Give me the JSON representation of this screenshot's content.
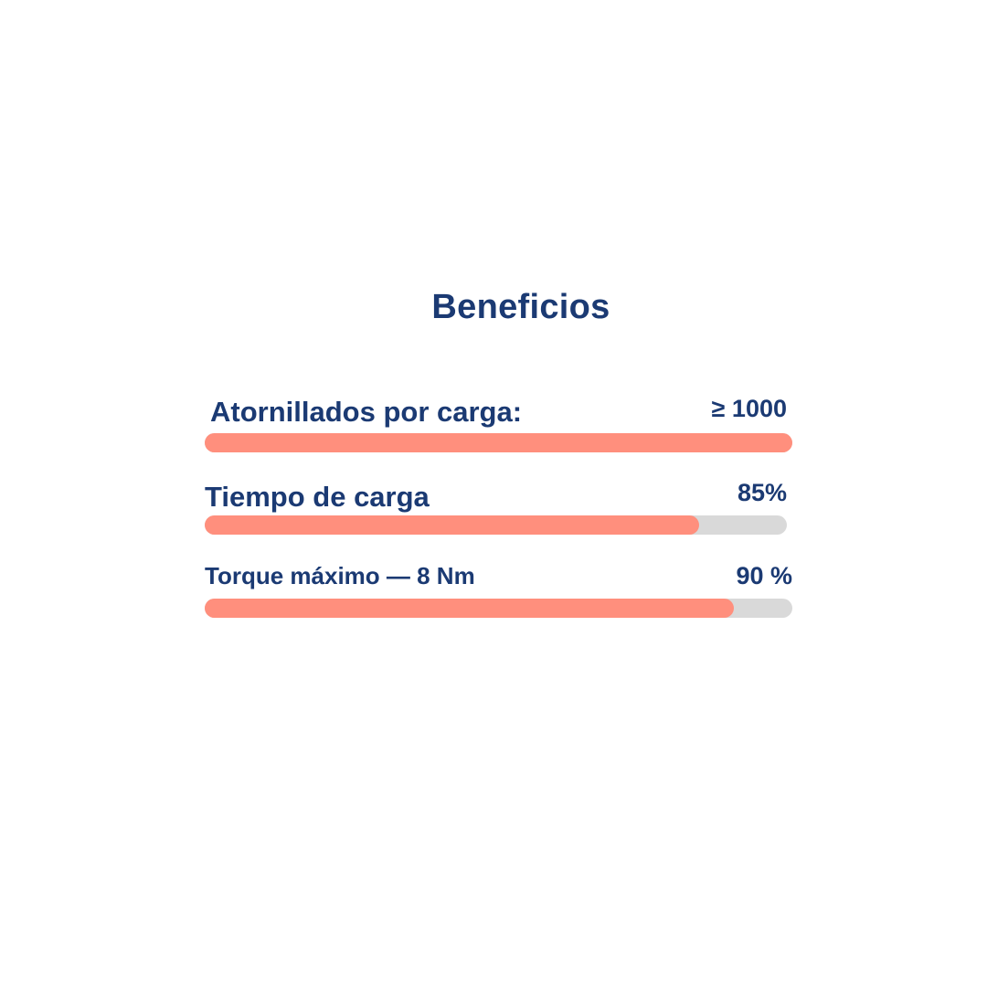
{
  "chart_data": {
    "type": "bar",
    "orientation": "horizontal",
    "title": "Beneficios",
    "categories": [
      "Atornillados por carga:",
      "Tiempo de carga",
      "Torque máximo — 8 Nm"
    ],
    "value_labels": [
      "≥ 1000",
      "85%",
      "90 %"
    ],
    "values": [
      100,
      85,
      90
    ],
    "xlim": [
      0,
      100
    ],
    "grid": false,
    "legend": "none"
  },
  "colors": {
    "title": "#1b3a73",
    "text": "#1b3a73",
    "bar_fill": "#ff8f7d",
    "bar_track": "#d9d9d9",
    "background": "#ffffff"
  }
}
